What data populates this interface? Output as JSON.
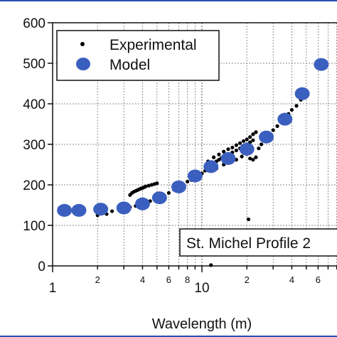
{
  "chart_data": {
    "type": "scatter",
    "xlabel": "Wavelength (m)",
    "ylabel": "",
    "x_scale": "log",
    "xlim": [
      1,
      80
    ],
    "ylim": [
      0,
      600
    ],
    "grid": true,
    "legend_position": "top-left",
    "y_ticks": [
      "0",
      "100",
      "200",
      "300",
      "400",
      "500",
      "600"
    ],
    "x_major_ticks": [
      {
        "value": 1,
        "label": "1"
      },
      {
        "value": 10,
        "label": "10"
      }
    ],
    "x_minor_labels": [
      {
        "value": 2,
        "label": "2"
      },
      {
        "value": 4,
        "label": "4"
      },
      {
        "value": 6,
        "label": "6"
      },
      {
        "value": 8,
        "label": "8"
      },
      {
        "value": 20,
        "label": "2"
      },
      {
        "value": 40,
        "label": "4"
      },
      {
        "value": 60,
        "label": "6"
      }
    ],
    "annotation": "St. Michel Profile 2",
    "series": [
      {
        "name": "Experimental",
        "marker": "small-dot",
        "color": "#000000",
        "points": [
          [
            2.0,
            125
          ],
          [
            2.1,
            130
          ],
          [
            2.3,
            128
          ],
          [
            2.5,
            135
          ],
          [
            2.8,
            138
          ],
          [
            3.0,
            140
          ],
          [
            3.3,
            145
          ],
          [
            3.6,
            148
          ],
          [
            3.9,
            152
          ],
          [
            3.3,
            175
          ],
          [
            3.4,
            180
          ],
          [
            3.5,
            183
          ],
          [
            3.6,
            185
          ],
          [
            3.7,
            187
          ],
          [
            3.8,
            189
          ],
          [
            3.9,
            191
          ],
          [
            4.0,
            192
          ],
          [
            4.1,
            194
          ],
          [
            4.2,
            196
          ],
          [
            4.4,
            198
          ],
          [
            4.6,
            200
          ],
          [
            4.8,
            202
          ],
          [
            5.0,
            204
          ],
          [
            4.5,
            160
          ],
          [
            5.0,
            165
          ],
          [
            5.5,
            172
          ],
          [
            6.0,
            180
          ],
          [
            6.5,
            188
          ],
          [
            7.0,
            195
          ],
          [
            7.5,
            200
          ],
          [
            8.0,
            208
          ],
          [
            8.5,
            212
          ],
          [
            9.0,
            218
          ],
          [
            10.0,
            228
          ],
          [
            10.5,
            235
          ],
          [
            11.0,
            240
          ],
          [
            11.5,
            245
          ],
          [
            12.0,
            252
          ],
          [
            12.5,
            258
          ],
          [
            13.0,
            262
          ],
          [
            13.5,
            266
          ],
          [
            14.0,
            270
          ],
          [
            14.5,
            274
          ],
          [
            15.0,
            276
          ],
          [
            16.0,
            280
          ],
          [
            17.0,
            285
          ],
          [
            18.0,
            290
          ],
          [
            19.0,
            295
          ],
          [
            20.0,
            300
          ],
          [
            21.0,
            305
          ],
          [
            22.0,
            310
          ],
          [
            11.0,
            258
          ],
          [
            12.0,
            268
          ],
          [
            13.0,
            275
          ],
          [
            14.0,
            282
          ],
          [
            15.0,
            288
          ],
          [
            16.0,
            292
          ],
          [
            17.0,
            298
          ],
          [
            18.0,
            303
          ],
          [
            19.0,
            308
          ],
          [
            20.0,
            312
          ],
          [
            21.0,
            318
          ],
          [
            22.0,
            325
          ],
          [
            23.0,
            330
          ],
          [
            12.5,
            240
          ],
          [
            14.0,
            250
          ],
          [
            15.5,
            255
          ],
          [
            17.0,
            262
          ],
          [
            18.5,
            270
          ],
          [
            20.0,
            276
          ],
          [
            21.0,
            265
          ],
          [
            22.0,
            262
          ],
          [
            23.0,
            268
          ],
          [
            24.0,
            290
          ],
          [
            25.0,
            300
          ],
          [
            26.0,
            310
          ],
          [
            27.0,
            320
          ],
          [
            28.0,
            325
          ],
          [
            30.0,
            335
          ],
          [
            32.0,
            345
          ],
          [
            34.0,
            355
          ],
          [
            36.0,
            365
          ],
          [
            38.0,
            375
          ],
          [
            40.0,
            385
          ],
          [
            43.0,
            395
          ],
          [
            46.0,
            410
          ],
          [
            50.0,
            425
          ],
          [
            20.5,
            115
          ],
          [
            11.5,
            2
          ]
        ]
      },
      {
        "name": "Model",
        "marker": "large-circle",
        "color": "#3a5fbf",
        "points": [
          [
            1.2,
            137
          ],
          [
            1.5,
            137
          ],
          [
            2.1,
            140
          ],
          [
            3.0,
            143
          ],
          [
            4.0,
            153
          ],
          [
            5.2,
            168
          ],
          [
            7.0,
            195
          ],
          [
            9.0,
            222
          ],
          [
            11.5,
            245
          ],
          [
            15.0,
            265
          ],
          [
            20.0,
            288
          ],
          [
            27.0,
            318
          ],
          [
            36.0,
            362
          ],
          [
            47.0,
            425
          ],
          [
            63.0,
            497
          ]
        ]
      }
    ]
  }
}
